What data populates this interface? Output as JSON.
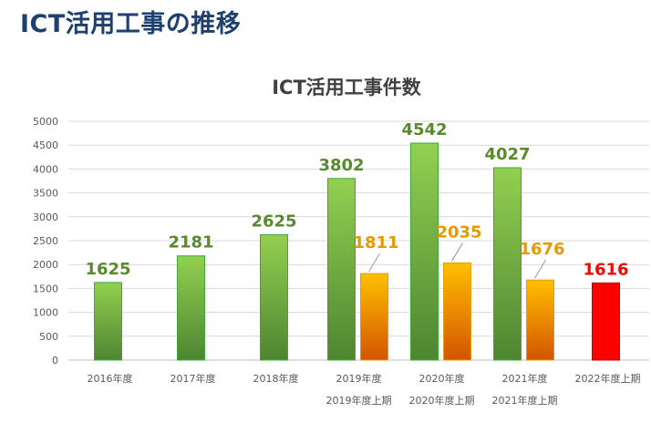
{
  "page_title": "ICT活用工事の推移",
  "colors": {
    "green_top": "#92D050",
    "green_bottom": "#4E8532",
    "green_label": "#5A8A2E",
    "orange_top": "#FFC000",
    "orange_bottom": "#D35400",
    "orange_label": "#E59A00",
    "red": "#FF0000",
    "title": "#404040",
    "page_title": "#1F3F6E"
  },
  "chart_data": {
    "type": "bar",
    "title": "ICT活用工事件数",
    "xlabel": "",
    "ylabel": "",
    "ylim": [
      0,
      5000
    ],
    "y_ticks": [
      0,
      500,
      1000,
      1500,
      2000,
      2500,
      3000,
      3500,
      4000,
      4500,
      5000
    ],
    "grid": true,
    "categories": [
      {
        "line1": "2016年度",
        "line2": ""
      },
      {
        "line1": "2017年度",
        "line2": ""
      },
      {
        "line1": "2018年度",
        "line2": ""
      },
      {
        "line1": "2019年度",
        "line2": "2019年度上期"
      },
      {
        "line1": "2020年度",
        "line2": "2020年度上期"
      },
      {
        "line1": "2021年度",
        "line2": "2021年度上期"
      },
      {
        "line1": "2022年度上期",
        "line2": ""
      }
    ],
    "series": [
      {
        "key": "annual",
        "values": [
          1625,
          2181,
          2625,
          3802,
          4542,
          4027,
          null
        ]
      },
      {
        "key": "first_half",
        "values": [
          null,
          null,
          null,
          1811,
          2035,
          1676,
          null
        ]
      },
      {
        "key": "current",
        "values": [
          null,
          null,
          null,
          null,
          null,
          null,
          1616
        ]
      }
    ]
  }
}
